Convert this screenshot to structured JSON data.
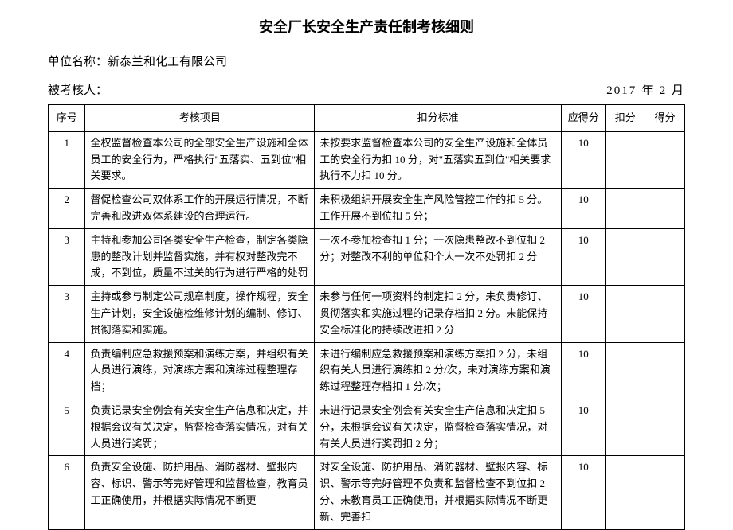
{
  "title": "安全厂长安全生产责任制考核细则",
  "company_label": "单位名称：新泰兰和化工有限公司",
  "assessee_label": "被考核人：",
  "date": {
    "year": "2017",
    "year_label": "年",
    "month": "2",
    "month_label": "月"
  },
  "columns": {
    "seq": "序号",
    "item": "考核项目",
    "standard": "扣分标准",
    "should": "应得分",
    "deduct": "扣分",
    "score": "得分"
  },
  "rows": [
    {
      "seq": "1",
      "item": "全权监督检查本公司的全部安全生产设施和全体员工的安全行为，严格执行\"五落实、五到位\"相关要求。",
      "standard": "未按要求监督检查本公司的安全生产设施和全体员工的安全行为扣 10 分，对\"五落实五到位\"相关要求执行不力扣 10 分。",
      "should": "10",
      "deduct": "",
      "score": ""
    },
    {
      "seq": "2",
      "item": "督促检查公司双体系工作的开展运行情况，不断完善和改进双体系建设的合理运行。",
      "standard": "未积极组织开展安全生产风险管控工作的扣 5 分。工作开展不到位扣 5 分；",
      "should": "10",
      "deduct": "",
      "score": ""
    },
    {
      "seq": "3",
      "item": "主持和参加公司各类安全生产检查，制定各类隐患的整改计划并监督实施，并有权对整改完不成，不到位，质量不过关的行为进行严格的处罚",
      "standard": "一次不参加检查扣 1 分；一次隐患整改不到位扣 2 分；对整改不利的单位和个人一次不处罚扣 2 分",
      "should": "10",
      "deduct": "",
      "score": ""
    },
    {
      "seq": "3",
      "item": "主持或参与制定公司规章制度，操作规程，安全生产计划，安全设施检维修计划的编制、修订、贯彻落实和实施。",
      "standard": "未参与任何一项资料的制定扣 2 分，未负责修订、贯彻落实和实施过程的记录存档扣 2 分。未能保持安全标准化的持续改进扣 2 分",
      "should": "10",
      "deduct": "",
      "score": ""
    },
    {
      "seq": "4",
      "item": "负责编制应急救援预案和演练方案，并组织有关人员进行演练，对演练方案和演练过程整理存档；",
      "standard": "未进行编制应急救援预案和演练方案扣 2 分，未组织有关人员进行演练扣 2 分/次，未对演练方案和演练过程整理存档扣 1 分/次；",
      "should": "10",
      "deduct": "",
      "score": ""
    },
    {
      "seq": "5",
      "item": "负责记录安全例会有关安全生产信息和决定，并根据会议有关决定，监督检查落实情况，对有关人员进行奖罚；",
      "standard": "未进行记录安全例会有关安全生产信息和决定扣 5 分，未根据会议有关决定，监督检查落实情况，对有关人员进行奖罚扣 2 分；",
      "should": "10",
      "deduct": "",
      "score": ""
    },
    {
      "seq": "6",
      "item": "负责安全设施、防护用品、消防器材、壁报内容、标识、警示等完好管理和监督检查，教育员工正确使用，并根据实际情况不断更",
      "standard": "对安全设施、防护用品、消防器材、壁报内容、标识、警示等完好管理不负责和监督检查不到位扣 2 分、未教育员工正确使用，并根据实际情况不断更新、完善扣",
      "should": "10",
      "deduct": "",
      "score": ""
    }
  ]
}
